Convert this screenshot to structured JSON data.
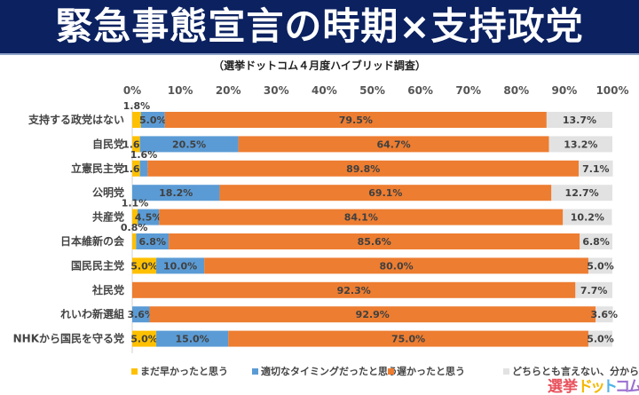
{
  "title": "緊急事態宣言の時期×支持政党",
  "subtitle": "（選挙ドットコム４月度ハイブリッド調査）",
  "logo_text": "選挙ドットコム",
  "chart_data": {
    "type": "bar",
    "orientation": "horizontal",
    "stacked": "percent",
    "title": "緊急事態宣言の時期×支持政党",
    "subtitle": "（選挙ドットコム４月度ハイブリッド調査）",
    "xlim": [
      0,
      100
    ],
    "x_ticks": [
      "0%",
      "10%",
      "20%",
      "30%",
      "40%",
      "50%",
      "60%",
      "70%",
      "80%",
      "90%",
      "100%"
    ],
    "x_axis_position": "top",
    "legend_position": "bottom",
    "grid": false,
    "categories": [
      "支持する政党はない",
      "自民党",
      "立憲民主党",
      "公明党",
      "共産党",
      "日本維新の会",
      "国民民主党",
      "社民党",
      "れいわ新選組",
      "NHKから国民を守る党"
    ],
    "series": [
      {
        "name": "まだ早かったと思う",
        "color": "#ffc000",
        "values": [
          1.8,
          1.6,
          1.6,
          0,
          1.1,
          0.8,
          5.0,
          0,
          0,
          5.0
        ]
      },
      {
        "name": "適切なタイミングだったと思う",
        "color": "#5b9bd5",
        "values": [
          5.0,
          20.5,
          1.6,
          18.2,
          4.5,
          6.8,
          10.0,
          0,
          3.6,
          15.0
        ]
      },
      {
        "name": "遅かったと思う",
        "color": "#ed7d31",
        "values": [
          79.5,
          64.7,
          89.8,
          69.1,
          84.1,
          85.6,
          80.0,
          92.3,
          92.9,
          75.0
        ]
      },
      {
        "name": "どちらとも言えない、分からない",
        "color": "#e2e2e2",
        "values": [
          13.7,
          13.2,
          7.1,
          12.7,
          10.2,
          6.8,
          5.0,
          7.7,
          3.6,
          5.0
        ]
      }
    ]
  }
}
